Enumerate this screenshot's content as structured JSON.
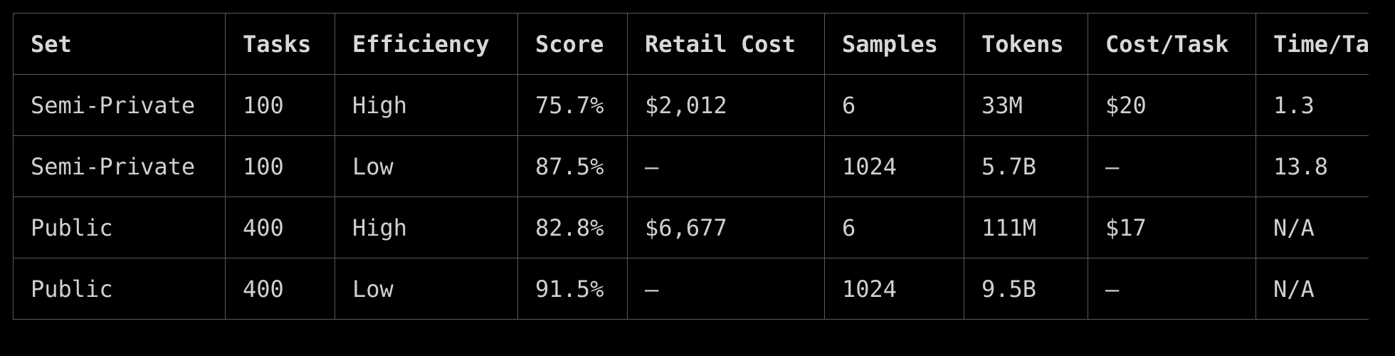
{
  "table": {
    "columns": [
      "Set",
      "Tasks",
      "Efficiency",
      "Score",
      "Retail Cost",
      "Samples",
      "Tokens",
      "Cost/Task",
      "Time/Task"
    ],
    "rows": [
      [
        "Semi-Private",
        "100",
        "High",
        "75.7%",
        "$2,012",
        "6",
        "33M",
        "$20",
        "1.3"
      ],
      [
        "Semi-Private",
        "100",
        "Low",
        "87.5%",
        "–",
        "1024",
        "5.7B",
        "–",
        "13.8"
      ],
      [
        "Public",
        "400",
        "High",
        "82.8%",
        "$6,677",
        "6",
        "111M",
        "$17",
        "N/A"
      ],
      [
        "Public",
        "400",
        "Low",
        "91.5%",
        "–",
        "1024",
        "9.5B",
        "–",
        "N/A"
      ]
    ]
  },
  "colors": {
    "background": "#000000",
    "border": "#5a5a5a",
    "text": "#d4d4d4"
  }
}
